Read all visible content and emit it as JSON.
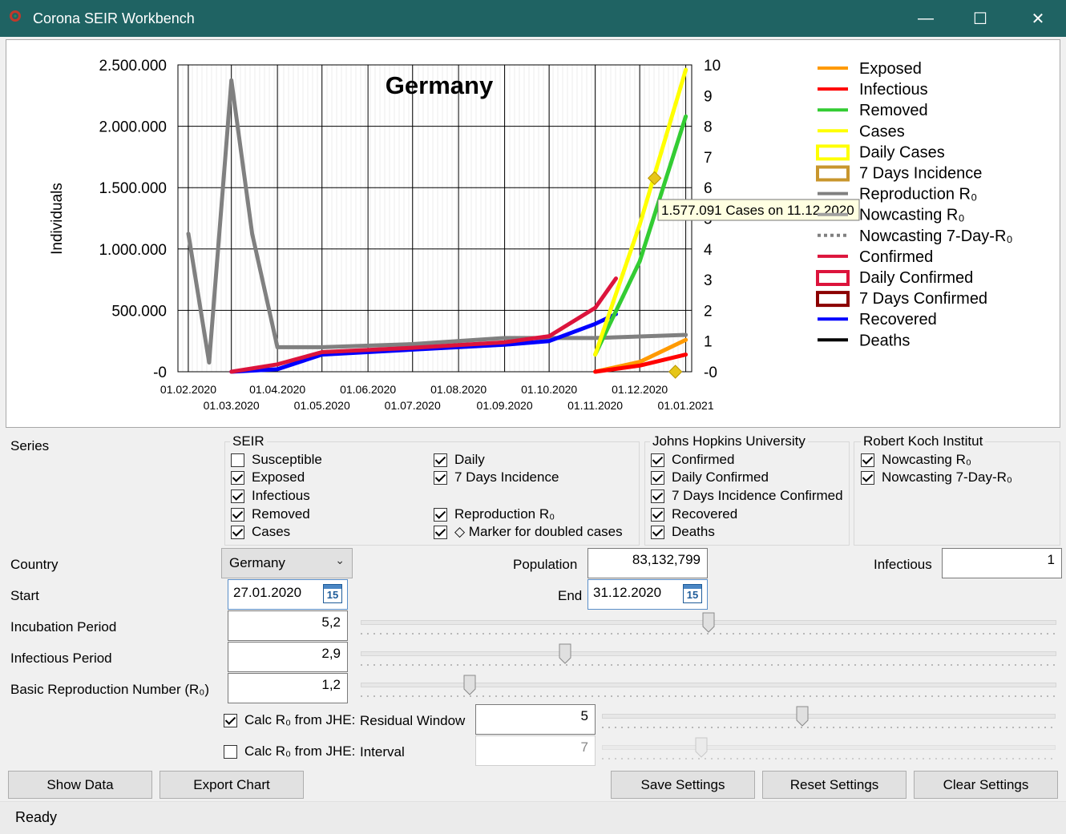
{
  "window": {
    "title": "Corona SEIR Workbench",
    "minimize": "—",
    "maximize": "☐",
    "close": "✕"
  },
  "chart_data": {
    "type": "line",
    "title": "Germany",
    "ylabel": "Individuals",
    "y_left_ticks": [
      "2.500.000",
      "2.000.000",
      "1.500.000",
      "1.000.000",
      "500.000",
      "-0"
    ],
    "y_left_lim": [
      0,
      2500000
    ],
    "y_right_ticks": [
      "10",
      "9",
      "8",
      "7",
      "6",
      "5",
      "4",
      "3",
      "2",
      "1",
      "-0"
    ],
    "y_right_lim": [
      0,
      10
    ],
    "x_ticks_row1": [
      "01.02.2020",
      "01.04.2020",
      "01.06.2020",
      "01.08.2020",
      "01.10.2020",
      "01.12.2020"
    ],
    "x_ticks_row2": [
      "01.03.2020",
      "01.05.2020",
      "01.07.2020",
      "01.09.2020",
      "01.11.2020",
      "01.01.2021"
    ],
    "grid": true,
    "legend_position": "right",
    "tooltip": "1.577.091 Cases on 11.12.2020",
    "legend": [
      {
        "label": "Exposed",
        "color": "#ff9a00",
        "style": "line"
      },
      {
        "label": "Infectious",
        "color": "#ff0000",
        "style": "line"
      },
      {
        "label": "Removed",
        "color": "#33cc33",
        "style": "line"
      },
      {
        "label": "Cases",
        "color": "#ffff00",
        "style": "line"
      },
      {
        "label": "Daily Cases",
        "color": "#ffff00",
        "style": "box"
      },
      {
        "label": "7 Days Incidence",
        "color": "#c8962d",
        "style": "box"
      },
      {
        "label": "Reproduction R₀",
        "color": "#808080",
        "style": "line"
      },
      {
        "label": "Nowcasting R₀",
        "color": "#a0a0a0",
        "style": "line"
      },
      {
        "label": "Nowcasting 7-Day-R₀",
        "color": "#808080",
        "style": "dotted"
      },
      {
        "label": "Confirmed",
        "color": "#dc143c",
        "style": "line"
      },
      {
        "label": "Daily Confirmed",
        "color": "#dc143c",
        "style": "box"
      },
      {
        "label": "7 Days Confirmed",
        "color": "#8b0000",
        "style": "box"
      },
      {
        "label": "Recovered",
        "color": "#0000ff",
        "style": "line"
      },
      {
        "label": "Deaths",
        "color": "#000000",
        "style": "line"
      }
    ],
    "series": [
      {
        "name": "Exposed",
        "color": "#ff9a00",
        "x": [
          "01.11.2020",
          "01.12.2020",
          "01.01.2021"
        ],
        "values": [
          0,
          80000,
          260000
        ]
      },
      {
        "name": "Infectious",
        "color": "#ff0000",
        "x": [
          "01.11.2020",
          "01.12.2020",
          "01.01.2021"
        ],
        "values": [
          0,
          50000,
          140000
        ]
      },
      {
        "name": "Removed",
        "color": "#33cc33",
        "x": [
          "01.11.2020",
          "01.12.2020",
          "01.01.2021"
        ],
        "values": [
          140000,
          900000,
          2080000
        ]
      },
      {
        "name": "Cases",
        "color": "#ffff00",
        "x": [
          "01.11.2020",
          "01.12.2020",
          "01.01.2021"
        ],
        "values": [
          140000,
          1200000,
          2460000
        ]
      },
      {
        "name": "Confirmed",
        "color": "#dc143c",
        "x": [
          "01.03.2020",
          "01.04.2020",
          "01.05.2020",
          "01.07.2020",
          "01.09.2020",
          "01.10.2020",
          "01.11.2020",
          "15.11.2020"
        ],
        "values": [
          0,
          60000,
          160000,
          195000,
          240000,
          290000,
          520000,
          760000
        ]
      },
      {
        "name": "Recovered",
        "color": "#0000ff",
        "x": [
          "01.03.2020",
          "01.04.2020",
          "01.05.2020",
          "01.07.2020",
          "01.09.2020",
          "01.10.2020",
          "01.11.2020",
          "15.11.2020"
        ],
        "values": [
          0,
          20000,
          140000,
          180000,
          220000,
          250000,
          390000,
          470000
        ]
      },
      {
        "name": "Reproduction R₀",
        "color": "#808080",
        "axis": "right",
        "x": [
          "01.02.2020",
          "15.02.2020",
          "01.03.2020",
          "15.03.2020",
          "01.04.2020",
          "01.05.2020",
          "01.07.2020",
          "01.09.2020",
          "01.11.2020",
          "01.01.2021"
        ],
        "values": [
          4.5,
          0.3,
          9.5,
          4.5,
          0.8,
          0.8,
          0.9,
          1.1,
          1.1,
          1.2
        ]
      }
    ]
  },
  "series_panel": {
    "label": "Series",
    "seir": {
      "title": "SEIR",
      "items": [
        {
          "label": "Susceptible",
          "checked": false
        },
        {
          "label": "Exposed",
          "checked": true
        },
        {
          "label": "Infectious",
          "checked": true
        },
        {
          "label": "Removed",
          "checked": true
        },
        {
          "label": "Cases",
          "checked": true
        },
        {
          "label": "Daily",
          "checked": true
        },
        {
          "label": "7 Days Incidence",
          "checked": true
        },
        {
          "label": "Reproduction R₀",
          "checked": true
        },
        {
          "label": "◇ Marker for doubled cases",
          "checked": true
        }
      ]
    },
    "jhu": {
      "title": "Johns Hopkins University",
      "items": [
        {
          "label": "Confirmed",
          "checked": true
        },
        {
          "label": "Daily Confirmed",
          "checked": true
        },
        {
          "label": "7 Days Incidence Confirmed",
          "checked": true
        },
        {
          "label": "Recovered",
          "checked": true
        },
        {
          "label": "Deaths",
          "checked": true
        }
      ]
    },
    "rki": {
      "title": "Robert Koch Institut",
      "items": [
        {
          "label": "Nowcasting R₀",
          "checked": true
        },
        {
          "label": "Nowcasting 7-Day-R₀",
          "checked": true
        }
      ]
    }
  },
  "form": {
    "country_label": "Country",
    "country_value": "Germany",
    "population_label": "Population",
    "population_value": "83,132,799",
    "infectious_label": "Infectious",
    "infectious_value": "1",
    "start_label": "Start",
    "start_value": "27.01.2020",
    "end_label": "End",
    "end_value": "31.12.2020",
    "calendar_day": "15",
    "incubation_label": "Incubation Period",
    "incubation_value": "5,2",
    "incubation_level": 0.5,
    "infectious_period_label": "Infectious Period",
    "infectious_period_value": "2,9",
    "infectious_period_level": 0.29,
    "r0_label": "Basic Reproduction Number (R₀)",
    "r0_value": "1,2",
    "r0_level": 0.15,
    "calc_r0_label": "Calc R₀ from JHE:",
    "residual_checked": true,
    "residual_label": "Residual Window",
    "residual_value": "5",
    "residual_level": 0.44,
    "interval_checked": false,
    "interval_label": "Interval",
    "interval_value": "7",
    "interval_level": 0.21
  },
  "buttons": {
    "show_data": "Show Data",
    "export_chart": "Export Chart",
    "save_settings": "Save Settings",
    "reset_settings": "Reset Settings",
    "clear_settings": "Clear Settings"
  },
  "status": {
    "text": "Ready"
  }
}
